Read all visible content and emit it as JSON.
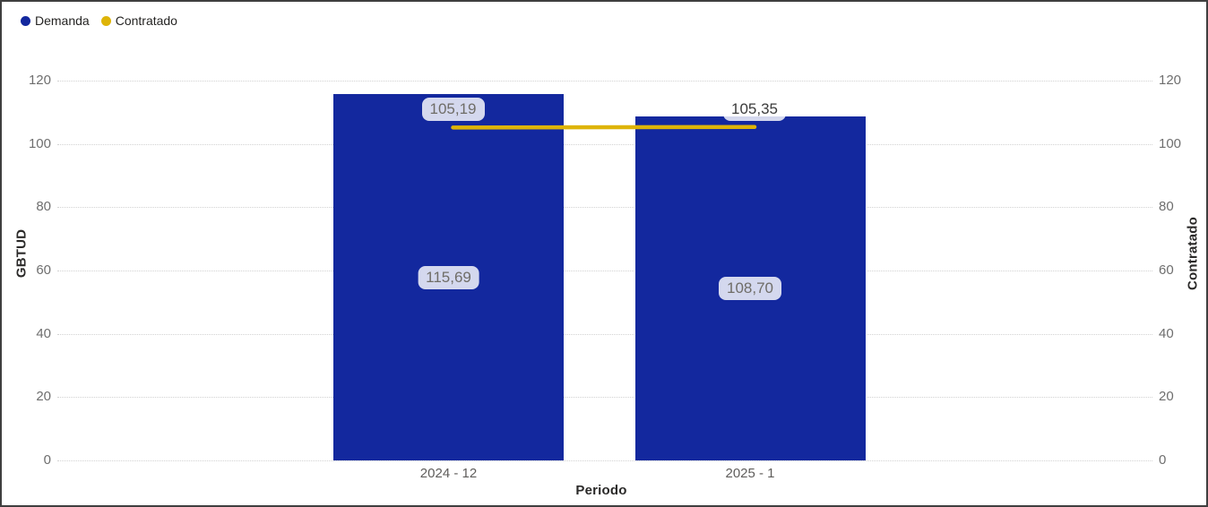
{
  "chart_data": {
    "type": "bar",
    "subtype": "line-and-clustered-column-combo",
    "title": "",
    "categories": [
      "2024 - 12",
      "2025 - 1"
    ],
    "series": [
      {
        "name": "Demanda",
        "render": "column",
        "axis": "left",
        "color": "#13289E",
        "values": [
          115.69,
          108.7
        ],
        "labels": [
          "115,69",
          "108,70"
        ],
        "label_colors": [
          "#6f6d67",
          "#6f6d67"
        ]
      },
      {
        "name": "Contratado",
        "render": "line",
        "axis": "right",
        "color": "#DEB408",
        "values": [
          105.19,
          105.35
        ],
        "labels": [
          "105,19",
          "105,35"
        ],
        "label_colors": [
          "#6f6d67",
          "#3c3c3c"
        ]
      }
    ],
    "x_axis": {
      "title": "Periodo",
      "tick_labels": [
        "2024 - 12",
        "2025 - 1"
      ]
    },
    "y_axis_left": {
      "title": "GBTUD",
      "min": 0,
      "max": 120,
      "tick_interval": 20,
      "tick_values": [
        0,
        20,
        40,
        60,
        80,
        100,
        120
      ],
      "tick_labels": [
        "0",
        "20",
        "40",
        "60",
        "80",
        "100",
        "120"
      ]
    },
    "y_axis_right": {
      "title": "Contratado",
      "min": 0,
      "max": 120,
      "tick_interval": 20,
      "tick_values": [
        0,
        20,
        40,
        60,
        80,
        100,
        120
      ],
      "tick_labels": [
        "0",
        "20",
        "40",
        "60",
        "80",
        "100",
        "120"
      ]
    },
    "grid": "horizontal-dotted",
    "legend": {
      "position": "top-left",
      "items": [
        {
          "label": "Demanda",
          "color": "#13289E"
        },
        {
          "label": "Contratado",
          "color": "#DEB408"
        }
      ]
    },
    "colors": {
      "bar_blue": "#13289E",
      "line_gold": "#DEB408",
      "gridline": "#d2d2d2",
      "tick_text": "#6e6e6e",
      "axis_title_text": "#2b2a29",
      "label_badge_bg": "rgba(255,255,255,0.82)"
    }
  }
}
